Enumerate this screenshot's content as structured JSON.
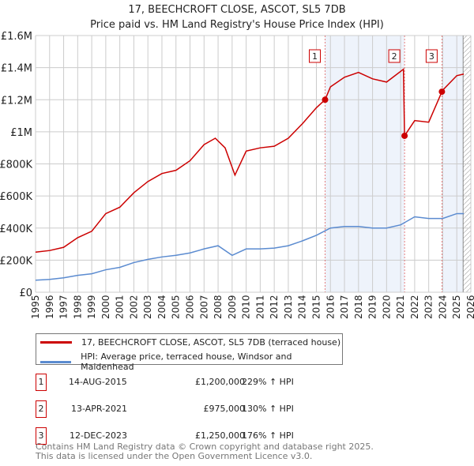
{
  "title": "17, BEECHCROFT CLOSE, ASCOT, SL5 7DB",
  "subtitle": "Price paid vs. HM Land Registry's House Price Index (HPI)",
  "chart_data": {
    "type": "line",
    "xlim": [
      1995,
      2026
    ],
    "ylim": [
      0,
      1600000
    ],
    "yticks": [
      {
        "v": 0,
        "label": "£0"
      },
      {
        "v": 200000,
        "label": "£200K"
      },
      {
        "v": 400000,
        "label": "£400K"
      },
      {
        "v": 600000,
        "label": "£600K"
      },
      {
        "v": 800000,
        "label": "£800K"
      },
      {
        "v": 1000000,
        "label": "£1M"
      },
      {
        "v": 1200000,
        "label": "£1.2M"
      },
      {
        "v": 1400000,
        "label": "£1.4M"
      },
      {
        "v": 1600000,
        "label": "£1.6M"
      }
    ],
    "xticks": [
      "1995",
      "1996",
      "1997",
      "1998",
      "1999",
      "2000",
      "2001",
      "2002",
      "2003",
      "2004",
      "2005",
      "2006",
      "2007",
      "2008",
      "2009",
      "2010",
      "2011",
      "2012",
      "2013",
      "2014",
      "2015",
      "2016",
      "2017",
      "2018",
      "2019",
      "2020",
      "2021",
      "2022",
      "2023",
      "2024",
      "2025",
      "2026"
    ],
    "series": [
      {
        "name": "17, BEECHCROFT CLOSE, ASCOT, SL5 7DB (terraced house)",
        "color": "#cc0000",
        "x": [
          1995,
          1996,
          1997,
          1998,
          1999,
          2000,
          2001,
          2002,
          2003,
          2004,
          2005,
          2006,
          2007,
          2007.8,
          2008.5,
          2009.2,
          2010,
          2011,
          2012,
          2013,
          2014,
          2015,
          2015.62,
          2016,
          2017,
          2018,
          2019,
          2020,
          2021.2,
          2021.28,
          2022,
          2023,
          2023.94,
          2024,
          2025,
          2025.5
        ],
        "y": [
          250000,
          260000,
          280000,
          340000,
          380000,
          490000,
          530000,
          620000,
          690000,
          740000,
          760000,
          820000,
          920000,
          960000,
          900000,
          730000,
          880000,
          900000,
          910000,
          960000,
          1050000,
          1150000,
          1200000,
          1280000,
          1340000,
          1370000,
          1330000,
          1310000,
          1390000,
          975000,
          1070000,
          1060000,
          1250000,
          1260000,
          1350000,
          1360000
        ]
      },
      {
        "name": "HPI: Average price, terraced house, Windsor and Maidenhead",
        "color": "#5b8bd0",
        "x": [
          1995,
          1996,
          1997,
          1998,
          1999,
          2000,
          2001,
          2002,
          2003,
          2004,
          2005,
          2006,
          2007,
          2008,
          2009,
          2010,
          2011,
          2012,
          2013,
          2014,
          2015,
          2016,
          2017,
          2018,
          2019,
          2020,
          2021,
          2022,
          2023,
          2024,
          2025,
          2025.5
        ],
        "y": [
          75000,
          80000,
          90000,
          105000,
          115000,
          140000,
          155000,
          185000,
          205000,
          220000,
          230000,
          245000,
          270000,
          290000,
          230000,
          270000,
          270000,
          275000,
          290000,
          320000,
          355000,
          400000,
          410000,
          410000,
          400000,
          400000,
          420000,
          470000,
          460000,
          460000,
          490000,
          490000
        ]
      }
    ],
    "sales": [
      {
        "n": "1",
        "x": 2015.62,
        "date": "14-AUG-2015",
        "price": "£1,200,000",
        "value": 1200000,
        "hpi": "229% ↑ HPI"
      },
      {
        "n": "2",
        "x": 2021.28,
        "date": "13-APR-2021",
        "price": "£975,000",
        "value": 975000,
        "hpi": "130% ↑ HPI"
      },
      {
        "n": "3",
        "x": 2023.94,
        "date": "12-DEC-2023",
        "price": "£1,250,000",
        "value": 1250000,
        "hpi": "176% ↑ HPI"
      }
    ]
  },
  "footer1": "Contains HM Land Registry data © Crown copyright and database right 2025.",
  "footer2": "This data is licensed under the Open Government Licence v3.0."
}
